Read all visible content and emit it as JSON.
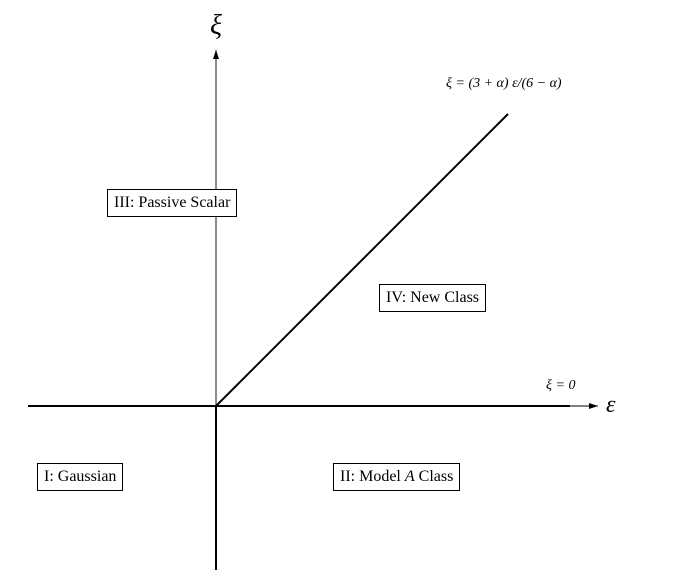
{
  "axes": {
    "x_symbol": "ε",
    "y_symbol": "ξ"
  },
  "lines": {
    "boundary_label": "ξ = (3 + α) ε/(6 − α)",
    "x_axis_label": "ξ = 0"
  },
  "regions": [
    {
      "text": "I: Gaussian"
    },
    {
      "text_prefix": "II: Model ",
      "text_italic": "A",
      "text_suffix": " Class"
    },
    {
      "text": "III: Passive Scalar"
    },
    {
      "text": "IV: New Class"
    }
  ]
}
